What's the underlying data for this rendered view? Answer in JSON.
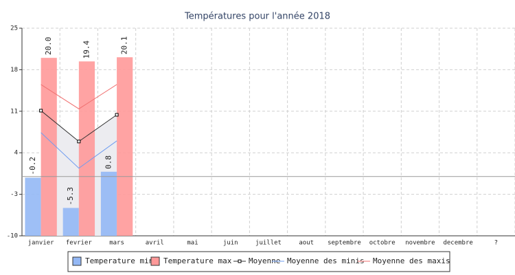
{
  "chart_data": {
    "type": "bar",
    "title": "Températures pour l'année 2018",
    "categories": [
      "janvier",
      "fevrier",
      "mars",
      "avril",
      "mai",
      "juin",
      "juillet",
      "aout",
      "septembre",
      "octobre",
      "novembre",
      "decembre",
      "?"
    ],
    "series": [
      {
        "name": "Temperature min",
        "type": "bar",
        "color": "#94b8f5",
        "values": [
          -0.2,
          -5.3,
          0.8,
          null,
          null,
          null,
          null,
          null,
          null,
          null,
          null,
          null,
          null
        ],
        "value_labels": [
          "-0.2",
          "-5.3",
          "0.8",
          null,
          null,
          null,
          null,
          null,
          null,
          null,
          null,
          null,
          null
        ]
      },
      {
        "name": "Temperature max",
        "type": "bar",
        "color": "#ff9999",
        "values": [
          20.0,
          19.4,
          20.1,
          null,
          null,
          null,
          null,
          null,
          null,
          null,
          null,
          null,
          null
        ],
        "value_labels": [
          "20.0",
          "19.4",
          "20.1",
          null,
          null,
          null,
          null,
          null,
          null,
          null,
          null,
          null,
          null
        ]
      },
      {
        "name": "Moyenne",
        "type": "line",
        "color": "#333333",
        "marker": "square",
        "area_color": "#ececf0",
        "values": [
          11.1,
          5.9,
          10.4,
          null,
          null,
          null,
          null,
          null,
          null,
          null,
          null,
          null,
          null
        ]
      },
      {
        "name": "Moyenne des minis",
        "type": "line",
        "color": "#6f9cf0",
        "values": [
          7.4,
          1.4,
          6.0,
          null,
          null,
          null,
          null,
          null,
          null,
          null,
          null,
          null,
          null
        ]
      },
      {
        "name": "Moyenne des maxis",
        "type": "line",
        "color": "#f07070",
        "values": [
          15.5,
          11.4,
          15.5,
          null,
          null,
          null,
          null,
          null,
          null,
          null,
          null,
          null,
          null
        ]
      }
    ],
    "ylim": [
      -10,
      25
    ],
    "yticks": [
      -10,
      -3,
      4,
      11,
      18,
      25
    ],
    "grid": true,
    "legend": "bottom"
  }
}
